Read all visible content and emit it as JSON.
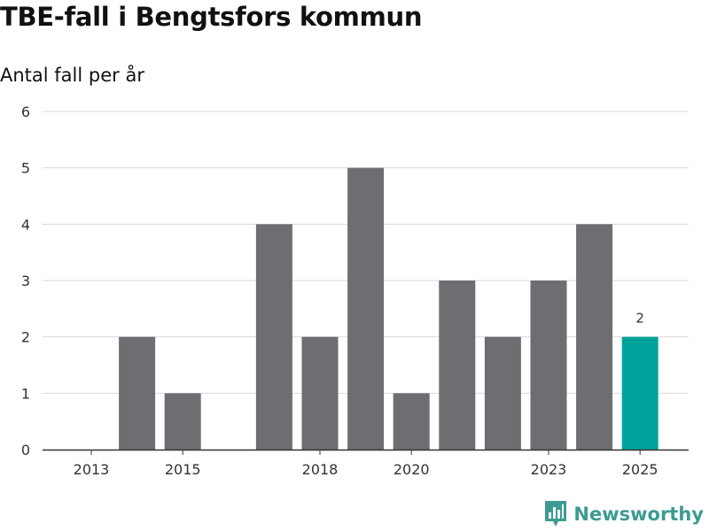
{
  "title": "TBE-fall i Bengtsfors kommun",
  "subtitle": "Antal fall per år",
  "brand": {
    "name": "Newsworthy",
    "color": "#3d9b91",
    "icon": "bar-chart-badge-icon"
  },
  "colors": {
    "bar": "#6e6d72",
    "highlight": "#00a39b",
    "grid": "#d9d9d9",
    "axis": "#333333",
    "text": "#333333"
  },
  "chart_data": {
    "type": "bar",
    "title": "TBE-fall i Bengtsfors kommun",
    "ylabel": "Antal fall per år",
    "xlabel": "",
    "ylim": [
      0,
      6
    ],
    "yticks": [
      0,
      1,
      2,
      3,
      4,
      5,
      6
    ],
    "categories": [
      "2013",
      "2014",
      "2015",
      "2016",
      "2017",
      "2018",
      "2019",
      "2020",
      "2021",
      "2022",
      "2023",
      "2024",
      "2025"
    ],
    "xtick_labels": [
      "2013",
      "2015",
      "2018",
      "2020",
      "2023",
      "2025"
    ],
    "values": [
      0,
      2,
      1,
      0,
      4,
      2,
      5,
      1,
      3,
      2,
      3,
      4,
      2
    ],
    "highlight_category": "2025",
    "highlight_label": "2",
    "grid": true
  }
}
